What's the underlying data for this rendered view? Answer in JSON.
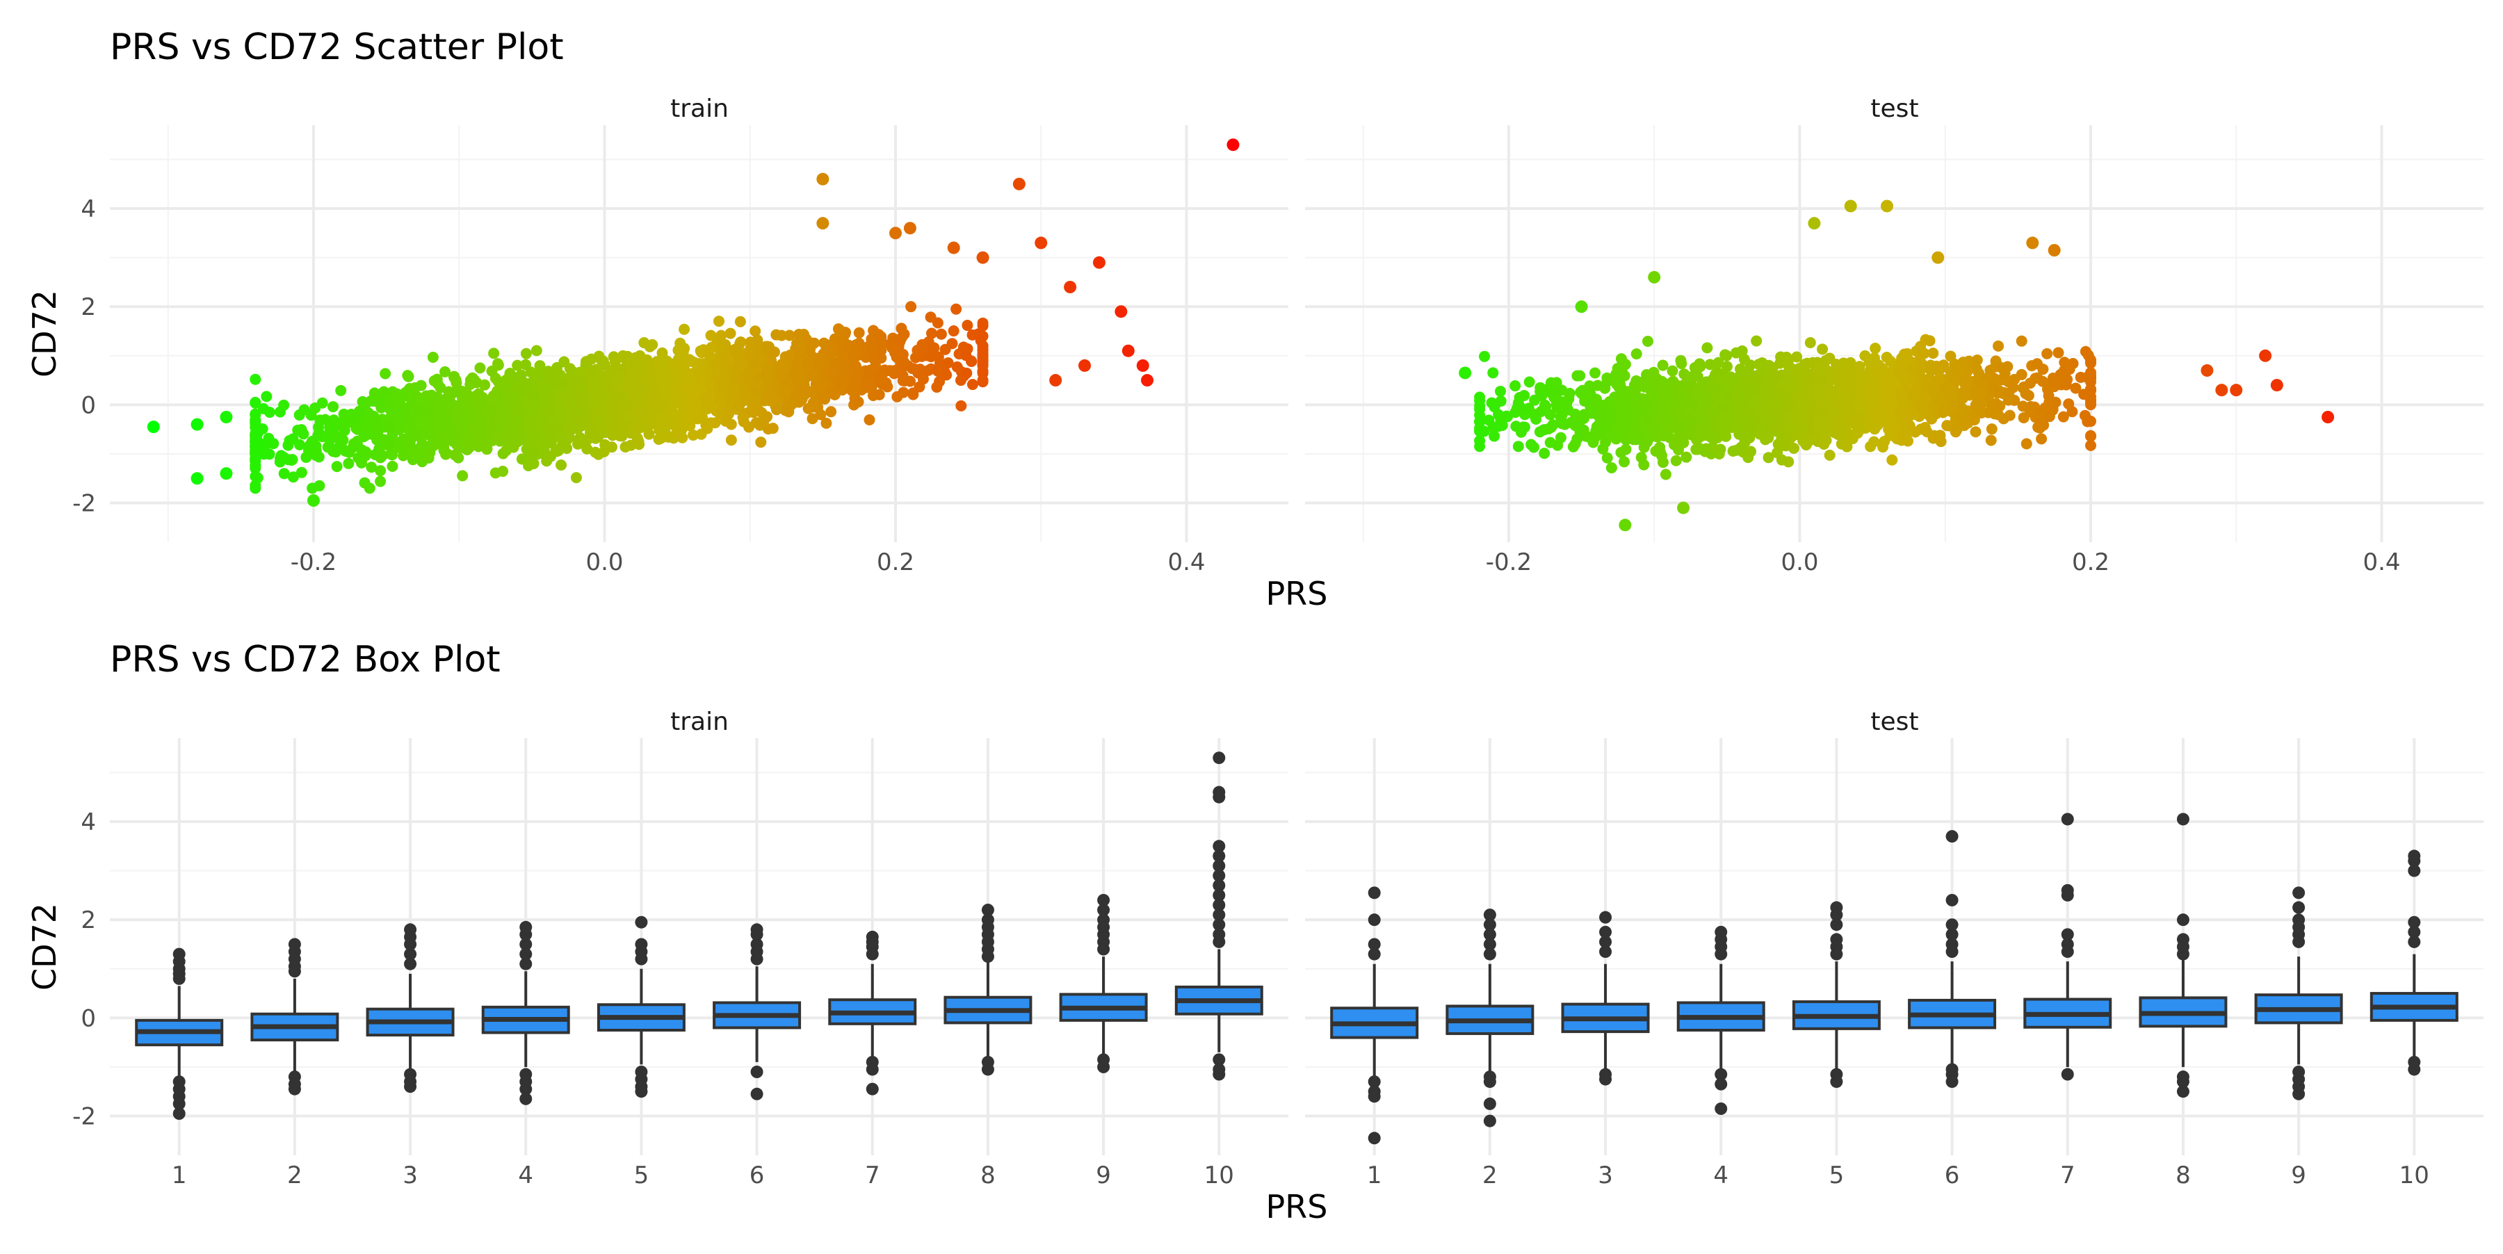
{
  "colors": {
    "low": "#00ff00",
    "mid": "#c8b400",
    "high": "#ff0000",
    "box_fill": "#2e8ff0",
    "box_line": "#333333",
    "outlier": "#333333"
  },
  "chart_data": [
    {
      "type": "scatter",
      "title": "PRS vs CD72 Scatter Plot",
      "xlabel": "PRS",
      "ylabel": "CD72",
      "xlim": [
        -0.34,
        0.47
      ],
      "ylim": [
        -2.8,
        5.7
      ],
      "xticks": [
        -0.2,
        0.0,
        0.2,
        0.4
      ],
      "xtick_labels": [
        "-0.2",
        "0.0",
        "0.2",
        "0.4"
      ],
      "yticks": [
        -2,
        0,
        2,
        4
      ],
      "ytick_labels": [
        "-2",
        "0",
        "2",
        "4"
      ],
      "grid": true,
      "legend": "none",
      "color_scale": "PRS gradient green to orange to red",
      "panels": [
        {
          "name": "train",
          "trend": {
            "slope": 3.8,
            "intercept": 0.1
          },
          "bulk_x_range": [
            -0.24,
            0.26
          ],
          "highlight_points": [
            {
              "x": -0.31,
              "y": -0.45
            },
            {
              "x": -0.28,
              "y": -1.5
            },
            {
              "x": -0.28,
              "y": -0.4
            },
            {
              "x": -0.26,
              "y": -0.25
            },
            {
              "x": -0.26,
              "y": -1.4
            },
            {
              "x": -0.2,
              "y": -1.95
            },
            {
              "x": 0.15,
              "y": 4.6
            },
            {
              "x": 0.15,
              "y": 3.7
            },
            {
              "x": 0.2,
              "y": 3.5
            },
            {
              "x": 0.21,
              "y": 3.6
            },
            {
              "x": 0.24,
              "y": 3.2
            },
            {
              "x": 0.26,
              "y": 3.0
            },
            {
              "x": 0.285,
              "y": 4.5
            },
            {
              "x": 0.3,
              "y": 3.3
            },
            {
              "x": 0.32,
              "y": 2.4
            },
            {
              "x": 0.34,
              "y": 2.9
            },
            {
              "x": 0.355,
              "y": 1.9
            },
            {
              "x": 0.36,
              "y": 1.1
            },
            {
              "x": 0.37,
              "y": 0.8
            },
            {
              "x": 0.373,
              "y": 0.5
            },
            {
              "x": 0.33,
              "y": 0.8
            },
            {
              "x": 0.31,
              "y": 0.5
            },
            {
              "x": 0.432,
              "y": 5.3
            }
          ]
        },
        {
          "name": "test",
          "trend": {
            "slope": 1.5,
            "intercept": 0.05
          },
          "bulk_x_range": [
            -0.22,
            0.2
          ],
          "highlight_points": [
            {
              "x": -0.23,
              "y": 0.65
            },
            {
              "x": -0.15,
              "y": 2.0
            },
            {
              "x": -0.12,
              "y": -2.45
            },
            {
              "x": -0.1,
              "y": 2.6
            },
            {
              "x": -0.08,
              "y": -2.1
            },
            {
              "x": 0.01,
              "y": 3.7
            },
            {
              "x": 0.035,
              "y": 4.05
            },
            {
              "x": 0.06,
              "y": 4.05
            },
            {
              "x": 0.095,
              "y": 3.0
            },
            {
              "x": 0.16,
              "y": 3.3
            },
            {
              "x": 0.175,
              "y": 3.15
            },
            {
              "x": 0.28,
              "y": 0.7
            },
            {
              "x": 0.29,
              "y": 0.3
            },
            {
              "x": 0.3,
              "y": 0.3
            },
            {
              "x": 0.32,
              "y": 1.0
            },
            {
              "x": 0.328,
              "y": 0.4
            },
            {
              "x": 0.363,
              "y": -0.25
            }
          ]
        }
      ]
    },
    {
      "type": "box",
      "title": "PRS vs CD72 Box Plot",
      "xlabel": "PRS",
      "ylabel": "CD72",
      "categories": [
        "1",
        "2",
        "3",
        "4",
        "5",
        "6",
        "7",
        "8",
        "9",
        "10"
      ],
      "ylim": [
        -2.8,
        5.7
      ],
      "yticks": [
        -2,
        0,
        2,
        4
      ],
      "ytick_labels": [
        "-2",
        "0",
        "2",
        "4"
      ],
      "grid": true,
      "panels": [
        {
          "name": "train",
          "boxes": [
            {
              "q1": -0.55,
              "median": -0.28,
              "q3": -0.05,
              "low": -1.25,
              "high": 0.65,
              "outliers": [
                1.3,
                1.15,
                1.0,
                0.9,
                0.8,
                -1.3,
                -1.45,
                -1.6,
                -1.75,
                -1.95
              ]
            },
            {
              "q1": -0.45,
              "median": -0.18,
              "q3": 0.08,
              "low": -1.15,
              "high": 0.8,
              "outliers": [
                1.5,
                1.35,
                1.2,
                1.05,
                0.95,
                -1.2,
                -1.35,
                -1.45
              ]
            },
            {
              "q1": -0.35,
              "median": -0.08,
              "q3": 0.18,
              "low": -1.05,
              "high": 0.9,
              "outliers": [
                1.8,
                1.65,
                1.5,
                1.3,
                1.1,
                -1.15,
                -1.3,
                -1.4
              ]
            },
            {
              "q1": -0.3,
              "median": -0.03,
              "q3": 0.22,
              "low": -1.0,
              "high": 0.95,
              "outliers": [
                1.85,
                1.7,
                1.5,
                1.3,
                1.1,
                -1.15,
                -1.3,
                -1.45,
                -1.65
              ]
            },
            {
              "q1": -0.25,
              "median": 0.01,
              "q3": 0.27,
              "low": -0.95,
              "high": 1.0,
              "outliers": [
                1.95,
                1.5,
                1.35,
                1.2,
                -1.1,
                -1.25,
                -1.4,
                -1.5
              ]
            },
            {
              "q1": -0.2,
              "median": 0.05,
              "q3": 0.31,
              "low": -0.9,
              "high": 1.05,
              "outliers": [
                1.8,
                1.7,
                1.5,
                1.35,
                1.2,
                -1.1,
                -1.55
              ]
            },
            {
              "q1": -0.12,
              "median": 0.1,
              "q3": 0.37,
              "low": -0.85,
              "high": 1.1,
              "outliers": [
                1.65,
                1.55,
                1.45,
                1.3,
                -0.9,
                -1.05,
                -1.45
              ]
            },
            {
              "q1": -0.1,
              "median": 0.15,
              "q3": 0.42,
              "low": -0.85,
              "high": 1.15,
              "outliers": [
                2.2,
                2.0,
                1.85,
                1.7,
                1.55,
                1.4,
                1.25,
                -0.9,
                -1.05
              ]
            },
            {
              "q1": -0.05,
              "median": 0.2,
              "q3": 0.48,
              "low": -0.8,
              "high": 1.25,
              "outliers": [
                2.4,
                2.2,
                2.0,
                1.85,
                1.7,
                1.55,
                1.4,
                -0.85,
                -1.0
              ]
            },
            {
              "q1": 0.08,
              "median": 0.35,
              "q3": 0.63,
              "low": -0.7,
              "high": 1.4,
              "outliers": [
                5.3,
                4.6,
                4.5,
                3.5,
                3.3,
                3.1,
                2.9,
                2.7,
                2.5,
                2.3,
                2.1,
                1.9,
                1.7,
                1.55,
                -0.85,
                -1.05,
                -1.15
              ]
            }
          ]
        },
        {
          "name": "test",
          "boxes": [
            {
              "q1": -0.4,
              "median": -0.12,
              "q3": 0.2,
              "low": -1.2,
              "high": 1.1,
              "outliers": [
                2.55,
                2.0,
                1.5,
                1.3,
                -1.3,
                -1.5,
                -1.6,
                -2.45
              ]
            },
            {
              "q1": -0.32,
              "median": -0.06,
              "q3": 0.24,
              "low": -1.1,
              "high": 1.1,
              "outliers": [
                2.1,
                1.9,
                1.7,
                1.5,
                1.3,
                -1.2,
                -1.3,
                -1.75,
                -2.1
              ]
            },
            {
              "q1": -0.28,
              "median": -0.02,
              "q3": 0.28,
              "low": -1.05,
              "high": 1.1,
              "outliers": [
                2.05,
                1.75,
                1.55,
                1.35,
                -1.15,
                -1.25
              ]
            },
            {
              "q1": -0.25,
              "median": 0.01,
              "q3": 0.31,
              "low": -1.05,
              "high": 1.1,
              "outliers": [
                1.75,
                1.6,
                1.45,
                1.3,
                -1.15,
                -1.35,
                -1.85
              ]
            },
            {
              "q1": -0.22,
              "median": 0.03,
              "q3": 0.33,
              "low": -1.05,
              "high": 1.15,
              "outliers": [
                2.25,
                2.1,
                1.9,
                1.6,
                1.45,
                1.3,
                -1.15,
                -1.3
              ]
            },
            {
              "q1": -0.2,
              "median": 0.06,
              "q3": 0.36,
              "low": -1.0,
              "high": 1.15,
              "outliers": [
                3.7,
                2.4,
                1.9,
                1.7,
                1.5,
                1.35,
                -1.05,
                -1.15,
                -1.3
              ]
            },
            {
              "q1": -0.19,
              "median": 0.07,
              "q3": 0.38,
              "low": -1.0,
              "high": 1.15,
              "outliers": [
                4.05,
                2.6,
                2.5,
                1.7,
                1.5,
                1.35,
                -1.15
              ]
            },
            {
              "q1": -0.17,
              "median": 0.09,
              "q3": 0.41,
              "low": -1.0,
              "high": 1.2,
              "outliers": [
                4.05,
                2.0,
                1.6,
                1.45,
                1.3,
                -1.2,
                -1.3,
                -1.5
              ]
            },
            {
              "q1": -0.1,
              "median": 0.17,
              "q3": 0.47,
              "low": -0.95,
              "high": 1.25,
              "outliers": [
                2.55,
                2.25,
                2.0,
                1.85,
                1.7,
                1.55,
                -1.1,
                -1.25,
                -1.4,
                -1.55
              ]
            },
            {
              "q1": -0.05,
              "median": 0.22,
              "q3": 0.5,
              "low": -0.85,
              "high": 1.3,
              "outliers": [
                3.3,
                3.2,
                3.0,
                1.95,
                1.75,
                1.55,
                -0.9,
                -1.05
              ]
            }
          ]
        }
      ]
    }
  ]
}
